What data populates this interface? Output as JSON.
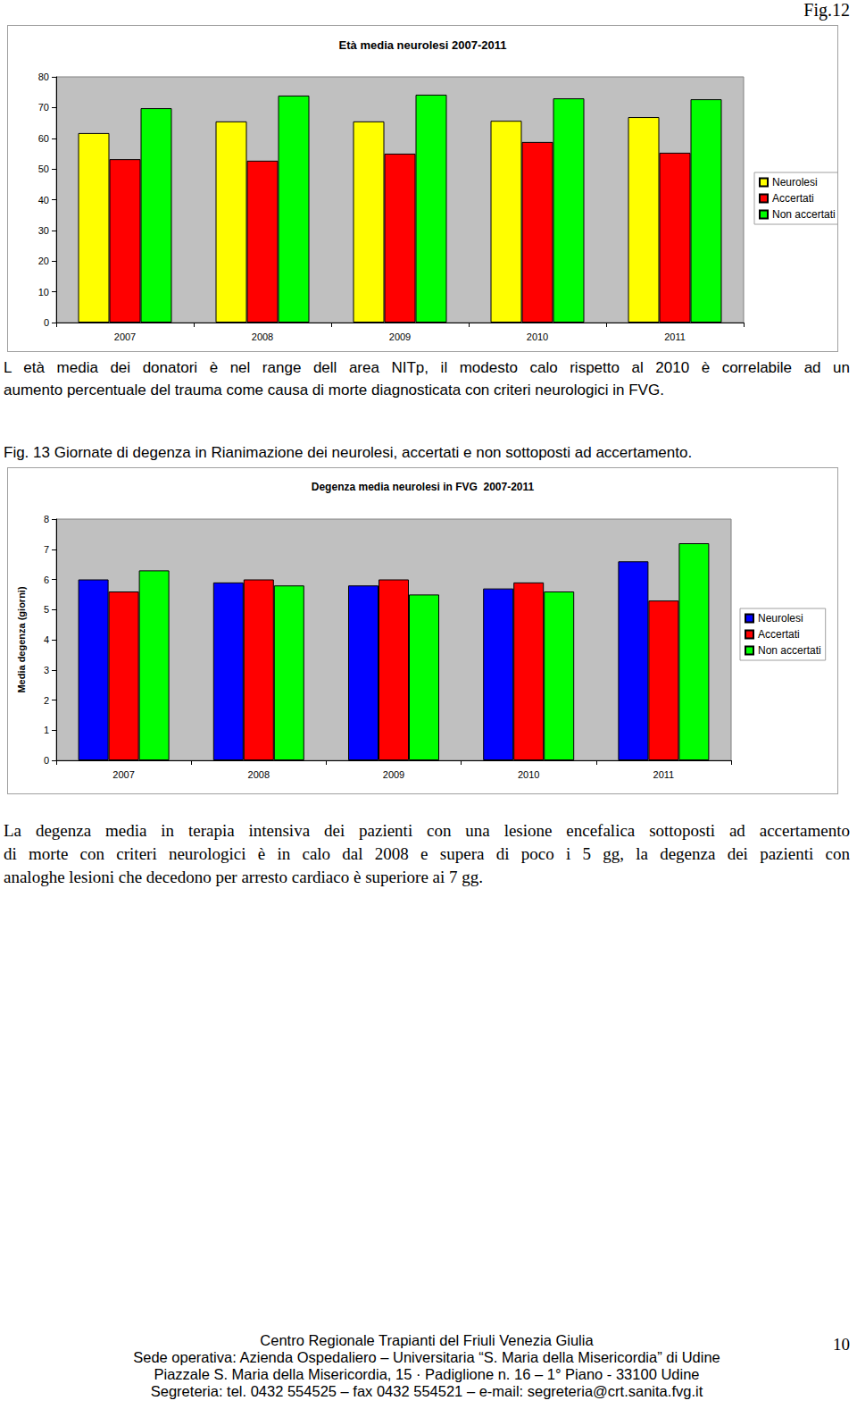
{
  "page_label": "Fig.12",
  "chart_data": [
    {
      "type": "bar",
      "title": "Età media neurolesi 2007-2011",
      "categories": [
        "2007",
        "2008",
        "2009",
        "2010",
        "2011"
      ],
      "series": [
        {
          "name": "Neurolesi",
          "color": "#ffff00",
          "values": [
            61.7,
            65.5,
            65.5,
            65.7,
            66.9
          ]
        },
        {
          "name": "Accertati",
          "color": "#ff0000",
          "values": [
            53.2,
            52.7,
            55.0,
            58.8,
            55.3
          ]
        },
        {
          "name": "Non accertati",
          "color": "#00ff00",
          "values": [
            69.8,
            73.9,
            74.2,
            73.0,
            72.7
          ]
        }
      ],
      "ylim": [
        0,
        80
      ],
      "yticks": [
        0,
        10,
        20,
        30,
        40,
        50,
        60,
        70,
        80
      ],
      "grid": false,
      "legend": "right"
    },
    {
      "type": "bar",
      "title": "Degenza media neurolesi in FVG  2007-2011",
      "ylabel": "Media degenza (giorni)",
      "categories": [
        "2007",
        "2008",
        "2009",
        "2010",
        "2011"
      ],
      "series": [
        {
          "name": "Neurolesi",
          "color": "#0000ff",
          "values": [
            6.0,
            5.9,
            5.8,
            5.7,
            6.6
          ]
        },
        {
          "name": "Accertati",
          "color": "#ff0000",
          "values": [
            5.6,
            6.0,
            6.0,
            5.9,
            5.3
          ]
        },
        {
          "name": "Non accertati",
          "color": "#00ff00",
          "values": [
            6.3,
            5.8,
            5.5,
            5.6,
            7.2
          ]
        }
      ],
      "ylim": [
        0,
        8
      ],
      "yticks": [
        0,
        1,
        2,
        3,
        4,
        5,
        6,
        7,
        8
      ],
      "grid": false,
      "legend": "right"
    }
  ],
  "text_1": [
    "L età media dei donatori è nel range dell area NITp, il modesto calo rispetto al 2010 è correlabile ad un",
    "aumento percentuale del trauma come causa di morte diagnosticata con criteri neurologici in FVG."
  ],
  "caption_2": "Fig. 13 Giornate di degenza in Rianimazione dei neurolesi, accertati e non sottoposti ad accertamento.",
  "text_2": [
    "La degenza media in terapia intensiva dei pazienti con una lesione encefalica sottoposti ad accertamento",
    "di morte con criteri neurologici è in calo dal 2008 e supera di poco i 5 gg, la degenza dei pazienti con",
    "analoghe lesioni che decedono per arresto cardiaco è superiore ai 7 gg."
  ],
  "footer": [
    "Centro Regionale Trapianti del Friuli Venezia Giulia",
    "Sede operativa: Azienda Ospedaliero – Universitaria “S. Maria della Misericordia” di Udine",
    "Piazzale S. Maria della Misericordia, 15 · Padiglione n. 16 – 1° Piano - 33100 Udine",
    "Segreteria: tel. 0432 554525 – fax 0432 554521 – e-mail: segreteria@crt.sanita.fvg.it"
  ],
  "page_number": "10"
}
